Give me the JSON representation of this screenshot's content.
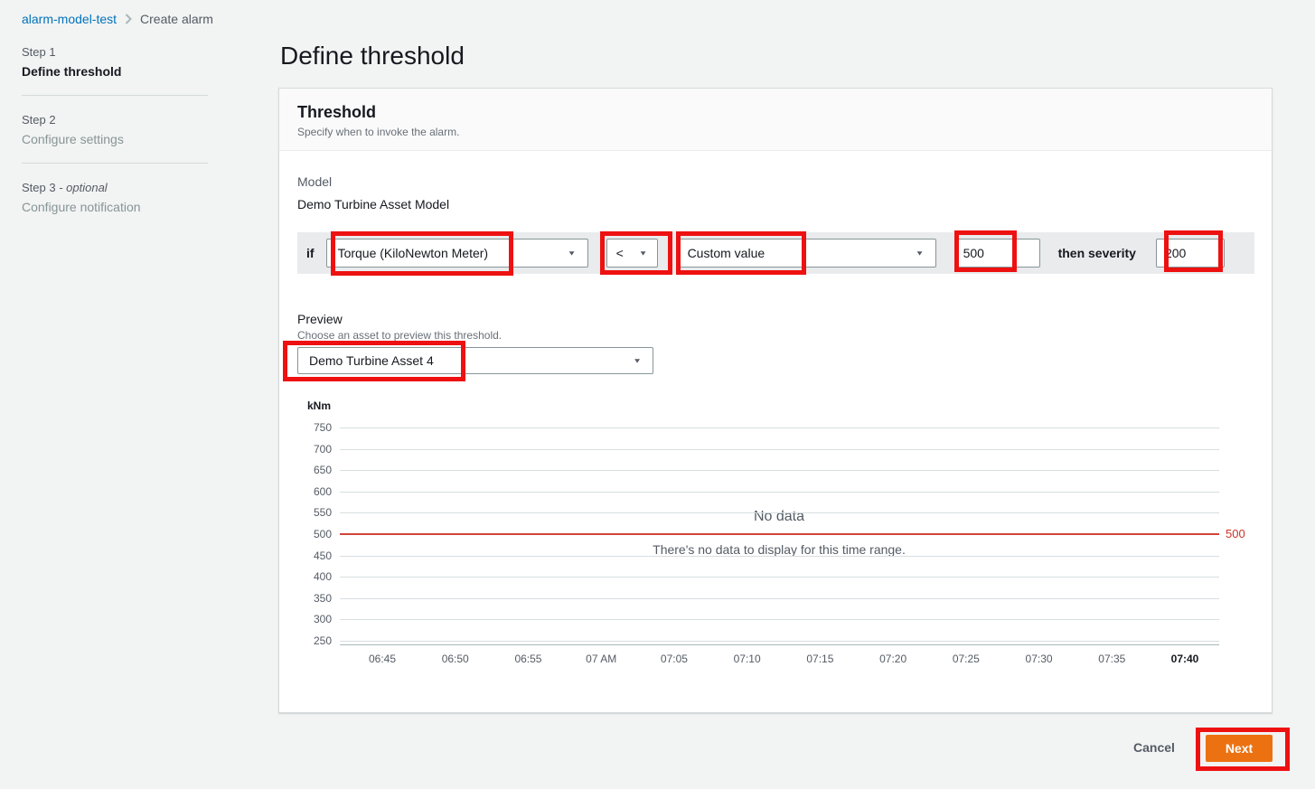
{
  "breadcrumb": {
    "parent": "alarm-model-test",
    "current": "Create alarm"
  },
  "steps": [
    {
      "num": "Step 1",
      "suffix": "",
      "title": "Define threshold",
      "active": true
    },
    {
      "num": "Step 2",
      "suffix": "",
      "title": "Configure settings",
      "active": false
    },
    {
      "num": "Step 3 ",
      "suffix": "- optional",
      "title": "Configure notification",
      "active": false
    }
  ],
  "page": {
    "title": "Define threshold"
  },
  "threshold_card": {
    "title": "Threshold",
    "description": "Specify when to invoke the alarm.",
    "model_label": "Model",
    "model_value": "Demo Turbine Asset Model",
    "condition": {
      "if_label": "if",
      "property": "Torque (KiloNewton Meter)",
      "operator": "<",
      "value_type": "Custom value",
      "value": "500",
      "then_label": "then severity",
      "severity": "200"
    },
    "preview": {
      "label": "Preview",
      "description": "Choose an asset to preview this threshold.",
      "asset": "Demo Turbine Asset 4"
    }
  },
  "chart_data": {
    "type": "line",
    "title": "",
    "ylabel_unit": "kNm",
    "ylim": [
      250,
      750
    ],
    "y_ticks": [
      750,
      700,
      650,
      600,
      550,
      500,
      450,
      400,
      350,
      300,
      250
    ],
    "x_ticks": [
      "06:45",
      "06:50",
      "06:55",
      "07 AM",
      "07:05",
      "07:10",
      "07:15",
      "07:20",
      "07:25",
      "07:30",
      "07:35",
      "07:40"
    ],
    "grid": true,
    "series": [],
    "threshold": {
      "value": 500,
      "label": "500",
      "color": "#d1453a"
    },
    "empty_state": {
      "title": "No data",
      "message": "There's no data to display for this time range."
    }
  },
  "footer": {
    "cancel": "Cancel",
    "next": "Next"
  },
  "icons": {
    "dropdown_caret": "▼",
    "breadcrumb_chevron": "chevron-right-icon"
  },
  "colors": {
    "link": "#0073bb",
    "accent_button": "#ec7211",
    "threshold_line": "#d1453a",
    "annotation_red": "#ee1111",
    "condition_strip_bg": "#e9ebed"
  }
}
